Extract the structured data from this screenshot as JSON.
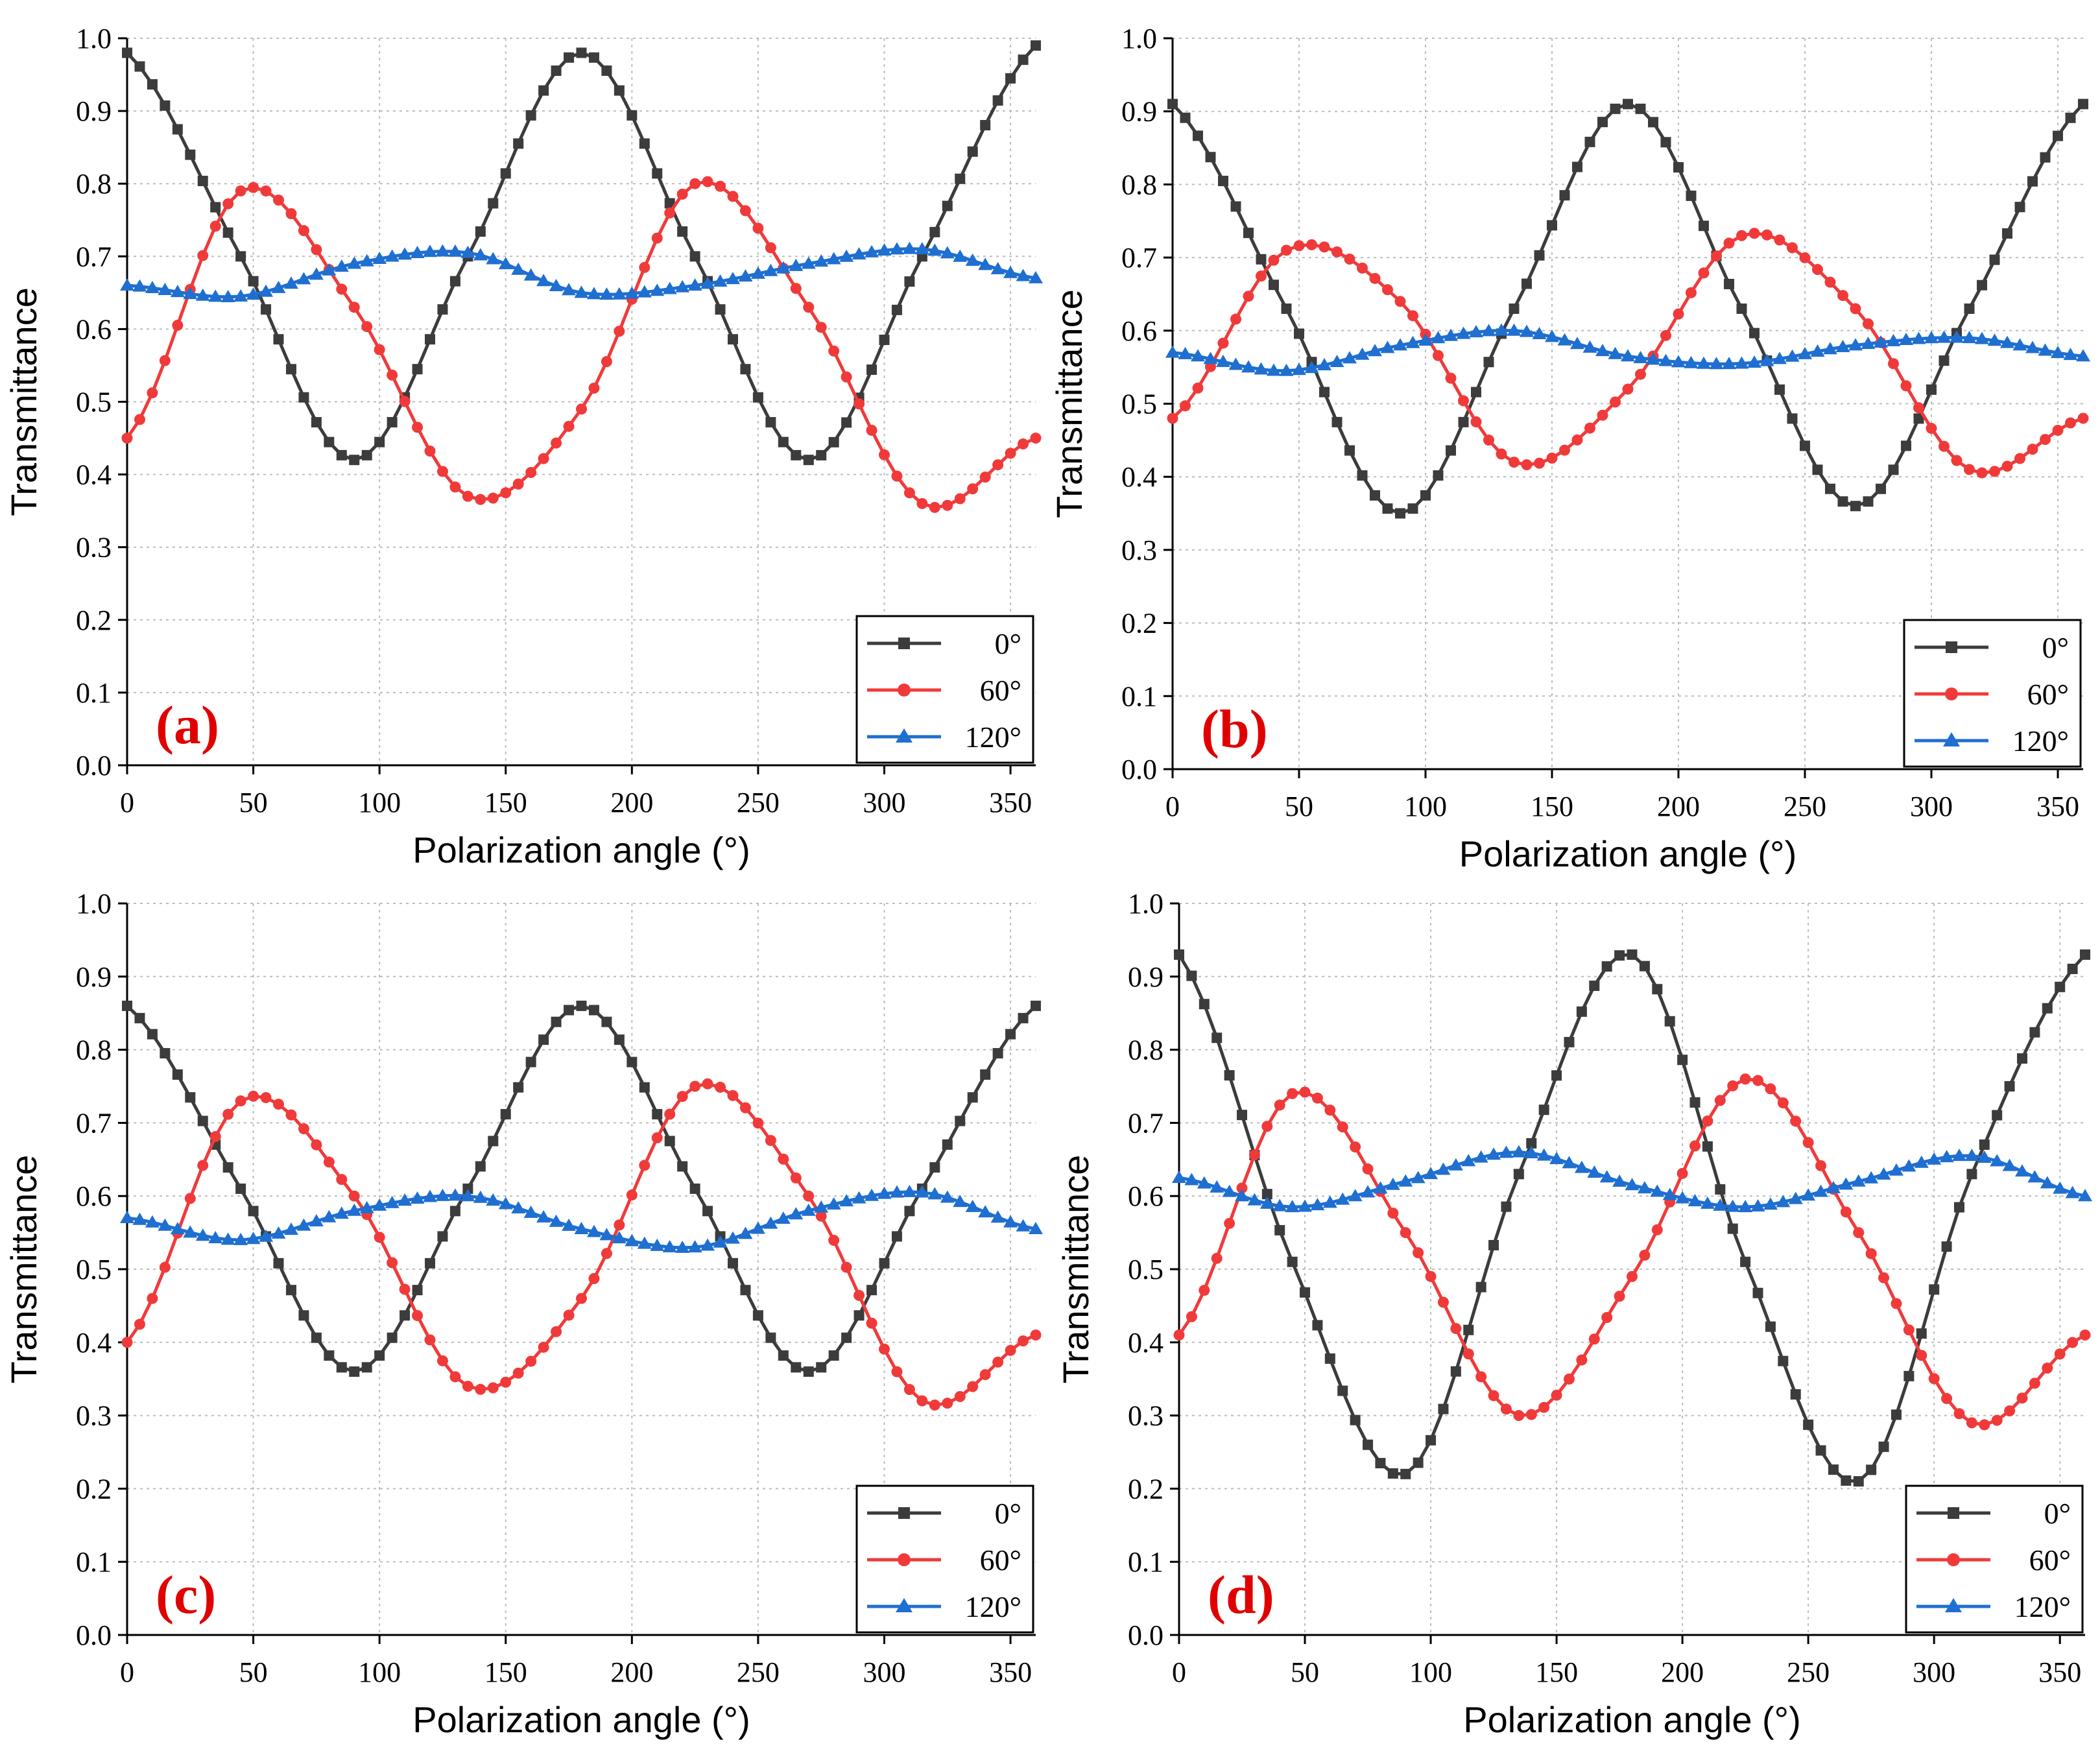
{
  "colors": {
    "series0": "#3c3c3c",
    "series60": "#f03a3a",
    "series120": "#1f6fd1",
    "panelLabel": "#e00000",
    "grid": "#bdbdbd"
  },
  "chart_data": [
    {
      "type": "line",
      "panel_label": "(a)",
      "xlabel": "Polarization angle (°)",
      "ylabel": "Transmittance",
      "xlim": [
        0,
        360
      ],
      "ylim": [
        0,
        1.0
      ],
      "xticks": [
        "0",
        "50",
        "100",
        "150",
        "200",
        "250",
        "300",
        "350"
      ],
      "yticks": [
        "0.0",
        "0.1",
        "0.2",
        "0.3",
        "0.4",
        "0.5",
        "0.6",
        "0.7",
        "0.8",
        "0.9",
        "1.0"
      ],
      "legend_position": "bottom-right",
      "x": [
        0,
        45,
        90,
        135,
        180,
        225,
        270,
        315,
        360
      ],
      "series": [
        {
          "name": "0°",
          "marker": "square",
          "values": [
            0.98,
            0.7,
            0.42,
            0.7,
            0.98,
            0.7,
            0.42,
            0.7,
            0.99
          ]
        },
        {
          "name": "60°",
          "marker": "circle",
          "values": [
            0.45,
            0.79,
            0.63,
            0.37,
            0.49,
            0.8,
            0.63,
            0.36,
            0.45
          ]
        },
        {
          "name": "120°",
          "marker": "triangle",
          "values": [
            0.66,
            0.645,
            0.69,
            0.705,
            0.65,
            0.66,
            0.69,
            0.71,
            0.67
          ]
        }
      ]
    },
    {
      "type": "line",
      "panel_label": "(b)",
      "xlabel": "Polarization angle (°)",
      "ylabel": "Transmittance",
      "xlim": [
        0,
        360
      ],
      "ylim": [
        0,
        1.0
      ],
      "xticks": [
        "0",
        "50",
        "100",
        "150",
        "200",
        "250",
        "300",
        "350"
      ],
      "yticks": [
        "0.0",
        "0.1",
        "0.2",
        "0.3",
        "0.4",
        "0.5",
        "0.6",
        "0.7",
        "0.8",
        "0.9",
        "1.0"
      ],
      "legend_position": "bottom-right",
      "x": [
        0,
        45,
        90,
        135,
        180,
        225,
        270,
        315,
        360
      ],
      "series": [
        {
          "name": "0°",
          "marker": "square",
          "values": [
            0.91,
            0.63,
            0.35,
            0.63,
            0.91,
            0.63,
            0.36,
            0.63,
            0.91
          ]
        },
        {
          "name": "60°",
          "marker": "circle",
          "values": [
            0.48,
            0.71,
            0.64,
            0.42,
            0.52,
            0.73,
            0.63,
            0.41,
            0.48
          ]
        },
        {
          "name": "120°",
          "marker": "triangle",
          "values": [
            0.57,
            0.545,
            0.58,
            0.6,
            0.565,
            0.555,
            0.58,
            0.59,
            0.565
          ]
        }
      ]
    },
    {
      "type": "line",
      "panel_label": "(c)",
      "xlabel": "Polarization angle (°)",
      "ylabel": "Transmittance",
      "xlim": [
        0,
        360
      ],
      "ylim": [
        0,
        1.0
      ],
      "xticks": [
        "0",
        "50",
        "100",
        "150",
        "200",
        "250",
        "300",
        "350"
      ],
      "yticks": [
        "0.0",
        "0.1",
        "0.2",
        "0.3",
        "0.4",
        "0.5",
        "0.6",
        "0.7",
        "0.8",
        "0.9",
        "1.0"
      ],
      "legend_position": "bottom-right",
      "x": [
        0,
        45,
        90,
        135,
        180,
        225,
        270,
        315,
        360
      ],
      "series": [
        {
          "name": "0°",
          "marker": "square",
          "values": [
            0.86,
            0.61,
            0.36,
            0.61,
            0.86,
            0.61,
            0.36,
            0.61,
            0.86
          ]
        },
        {
          "name": "60°",
          "marker": "circle",
          "values": [
            0.4,
            0.73,
            0.6,
            0.34,
            0.46,
            0.75,
            0.6,
            0.32,
            0.41
          ]
        },
        {
          "name": "120°",
          "marker": "triangle",
          "values": [
            0.57,
            0.54,
            0.58,
            0.6,
            0.555,
            0.53,
            0.58,
            0.605,
            0.555
          ]
        }
      ]
    },
    {
      "type": "line",
      "panel_label": "(d)",
      "xlabel": "Polarization angle (°)",
      "ylabel": "Transmittance",
      "xlim": [
        0,
        360
      ],
      "ylim": [
        0,
        1.0
      ],
      "xticks": [
        "0",
        "50",
        "100",
        "150",
        "200",
        "250",
        "300",
        "350"
      ],
      "yticks": [
        "0.0",
        "0.1",
        "0.2",
        "0.3",
        "0.4",
        "0.5",
        "0.6",
        "0.7",
        "0.8",
        "0.9",
        "1.0"
      ],
      "legend_position": "bottom-right",
      "x": [
        0,
        45,
        90,
        135,
        180,
        225,
        270,
        315,
        360
      ],
      "series": [
        {
          "name": "0°",
          "marker": "square",
          "values": [
            0.93,
            0.51,
            0.22,
            0.63,
            0.93,
            0.51,
            0.21,
            0.63,
            0.93
          ]
        },
        {
          "name": "60°",
          "marker": "circle",
          "values": [
            0.41,
            0.74,
            0.55,
            0.3,
            0.49,
            0.76,
            0.55,
            0.29,
            0.41
          ]
        },
        {
          "name": "120°",
          "marker": "triangle",
          "values": [
            0.625,
            0.585,
            0.62,
            0.66,
            0.615,
            0.585,
            0.62,
            0.655,
            0.6
          ]
        }
      ]
    }
  ]
}
